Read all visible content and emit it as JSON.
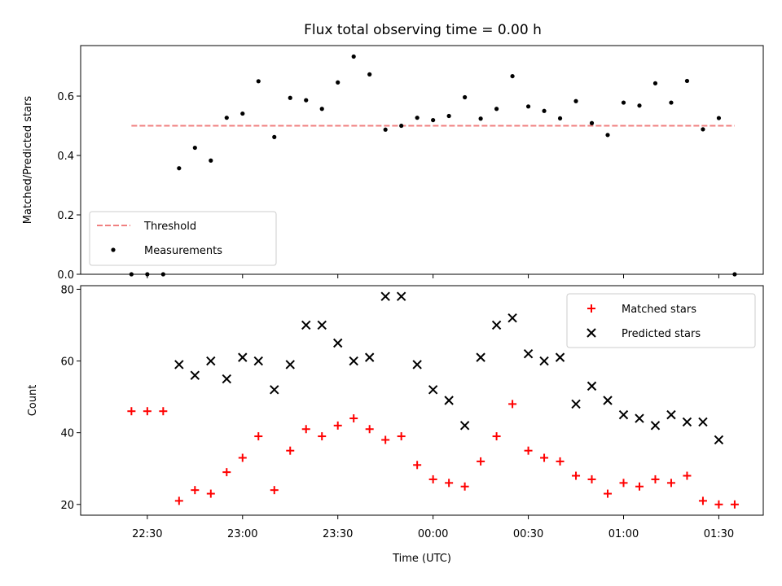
{
  "title": "Flux total observing time = 0.00 h",
  "chart_data": [
    {
      "type": "scatter",
      "ylabel": "Matched/Predicted stars",
      "xlabel": "",
      "ylim": [
        0,
        0.77
      ],
      "yticks": [
        0.0,
        0.2,
        0.4,
        0.6
      ],
      "ytick_labels": [
        "0.0",
        "0.2",
        "0.4",
        "0.6"
      ],
      "legend": {
        "position": "lower-left",
        "entries": [
          "Threshold",
          "Measurements"
        ]
      },
      "threshold": {
        "name": "Threshold",
        "value": 0.5,
        "color": "#f08080"
      },
      "series": [
        {
          "name": "Measurements",
          "color": "#000000",
          "x": [
            "22:25",
            "22:30",
            "22:35",
            "22:40",
            "22:45",
            "22:50",
            "22:55",
            "23:00",
            "23:05",
            "23:10",
            "23:15",
            "23:20",
            "23:25",
            "23:30",
            "23:35",
            "23:40",
            "23:45",
            "23:50",
            "23:55",
            "00:00",
            "00:05",
            "00:10",
            "00:15",
            "00:20",
            "00:25",
            "00:30",
            "00:35",
            "00:40",
            "00:45",
            "00:50",
            "00:55",
            "01:00",
            "01:05",
            "01:10",
            "01:15",
            "01:20",
            "01:25",
            "01:30",
            "01:35"
          ],
          "y": [
            0.0,
            0.0,
            0.0,
            0.357,
            0.426,
            0.383,
            0.527,
            0.541,
            0.65,
            0.462,
            0.594,
            0.586,
            0.557,
            0.646,
            0.733,
            0.673,
            0.487,
            0.5,
            0.527,
            0.519,
            0.533,
            0.596,
            0.524,
            0.557,
            0.667,
            0.565,
            0.55,
            0.525,
            0.583,
            0.509,
            0.469,
            0.578,
            0.568,
            0.643,
            0.578,
            0.651,
            0.488,
            0.526,
            0.0
          ]
        }
      ]
    },
    {
      "type": "scatter",
      "ylabel": "Count",
      "xlabel": "Time (UTC)",
      "ylim": [
        17,
        81
      ],
      "yticks": [
        20,
        40,
        60,
        80
      ],
      "ytick_labels": [
        "20",
        "40",
        "60",
        "80"
      ],
      "xticks": [
        "22:30",
        "23:00",
        "23:30",
        "00:00",
        "00:30",
        "01:00",
        "01:30"
      ],
      "legend": {
        "position": "top-right",
        "entries": [
          "Matched stars",
          "Predicted stars"
        ]
      },
      "series": [
        {
          "name": "Matched stars",
          "marker": "plus",
          "color": "#ff0000",
          "x": [
            "22:25",
            "22:30",
            "22:35",
            "22:40",
            "22:45",
            "22:50",
            "22:55",
            "23:00",
            "23:05",
            "23:10",
            "23:15",
            "23:20",
            "23:25",
            "23:30",
            "23:35",
            "23:40",
            "23:45",
            "23:50",
            "23:55",
            "00:00",
            "00:05",
            "00:10",
            "00:15",
            "00:20",
            "00:25",
            "00:30",
            "00:35",
            "00:40",
            "00:45",
            "00:50",
            "00:55",
            "01:00",
            "01:05",
            "01:10",
            "01:15",
            "01:20",
            "01:25",
            "01:30",
            "01:35"
          ],
          "y": [
            46,
            46,
            46,
            21,
            24,
            23,
            29,
            33,
            39,
            24,
            35,
            41,
            39,
            42,
            44,
            41,
            38,
            39,
            31,
            27,
            26,
            25,
            32,
            39,
            48,
            35,
            33,
            32,
            28,
            27,
            23,
            26,
            25,
            27,
            26,
            28,
            21,
            20,
            20
          ]
        },
        {
          "name": "Predicted stars",
          "marker": "x",
          "color": "#000000",
          "x": [
            "22:40",
            "22:45",
            "22:50",
            "22:55",
            "23:00",
            "23:05",
            "23:10",
            "23:15",
            "23:20",
            "23:25",
            "23:30",
            "23:35",
            "23:40",
            "23:45",
            "23:50",
            "23:55",
            "00:00",
            "00:05",
            "00:10",
            "00:15",
            "00:20",
            "00:25",
            "00:30",
            "00:35",
            "00:40",
            "00:45",
            "00:50",
            "00:55",
            "01:00",
            "01:05",
            "01:10",
            "01:15",
            "01:20",
            "01:25",
            "01:30"
          ],
          "y": [
            59,
            56,
            60,
            55,
            61,
            60,
            52,
            59,
            70,
            70,
            65,
            60,
            61,
            78,
            78,
            59,
            52,
            49,
            42,
            61,
            70,
            72,
            62,
            60,
            61,
            48,
            53,
            49,
            45,
            44,
            42,
            45,
            43,
            43,
            38
          ]
        }
      ]
    }
  ]
}
